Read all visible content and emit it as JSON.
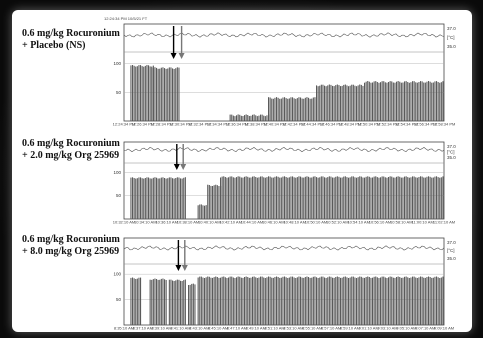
{
  "chart_data": [
    {
      "type": "bar",
      "series": [
        {
          "values": [],
          "name": ""
        }
      ],
      "label_line1": "0.6 mg/kg Rocuronium",
      "label_line2": "+ Placebo (NS)",
      "header": "12:24:34 PM 10/5/21 FT",
      "ylabels": [
        "100",
        "50",
        "0"
      ],
      "right_labels": [
        "37.0",
        "[°C]",
        "35.0"
      ],
      "xticks": [
        "12:24:34 PM",
        "12:26:34 PM",
        "12:28:34 PM",
        "12:30:34 PM",
        "12:32:34 PM",
        "12:34:34 PM",
        "12:36:34 PM",
        "12:38:34 PM",
        "12:40:34 PM",
        "12:42:34 PM",
        "12:44:34 PM",
        "12:46:34 PM",
        "12:48:34 PM",
        "12:50:34 PM",
        "12:52:34 PM",
        "12:54:34 PM",
        "12:56:34 PM",
        "12:58:34 PM"
      ],
      "bars": [
        {
          "start": 0.02,
          "end": 0.09,
          "value": 96
        },
        {
          "start": 0.09,
          "end": 0.17,
          "value": 92
        },
        {
          "start": 0.33,
          "end": 0.45,
          "value": 10
        },
        {
          "start": 0.45,
          "end": 0.6,
          "value": 40
        },
        {
          "start": 0.6,
          "end": 0.75,
          "value": 62
        },
        {
          "start": 0.75,
          "end": 1.0,
          "value": 68
        }
      ],
      "arrows": [
        0.155,
        0.18
      ],
      "ylim": [
        0,
        120
      ]
    },
    {
      "type": "bar",
      "series": [
        {
          "values": [],
          "name": ""
        }
      ],
      "label_line1": "0.6 mg/kg Rocuronium",
      "label_line2": "+ 2.0 mg/kg Org 25969",
      "header": "",
      "ylabels": [
        "100",
        "50",
        "0"
      ],
      "right_labels": [
        "37.0",
        "[°C]",
        "35.0"
      ],
      "xticks": [
        "10:32:10 AM",
        "10:34:10 AM",
        "10:36:10 AM",
        "10:38:10 AM",
        "10:40:10 AM",
        "10:42:10 AM",
        "10:44:10 AM",
        "10:46:10 AM",
        "10:48:10 AM",
        "10:50:10 AM",
        "10:52:10 AM",
        "10:54:10 AM",
        "10:56:10 AM",
        "10:58:10 AM",
        "11:00:10 AM",
        "11:02:10 AM"
      ],
      "bars": [
        {
          "start": 0.02,
          "end": 0.19,
          "value": 88
        },
        {
          "start": 0.23,
          "end": 0.26,
          "value": 30
        },
        {
          "start": 0.26,
          "end": 0.3,
          "value": 72
        },
        {
          "start": 0.3,
          "end": 1.0,
          "value": 90
        }
      ],
      "arrows": [
        0.165,
        0.185
      ],
      "ylim": [
        0,
        120
      ]
    },
    {
      "type": "bar",
      "series": [
        {
          "values": [],
          "name": ""
        }
      ],
      "label_line1": "0.6 mg/kg Rocuronium",
      "label_line2": "+ 8.0 mg/kg Org 25969",
      "header": "",
      "ylabels": [
        "100",
        "50",
        "0"
      ],
      "right_labels": [
        "37.0",
        "[°C]",
        "35.0"
      ],
      "xticks": [
        "8:35:10 AM",
        "8:37:10 AM",
        "8:39:10 AM",
        "8:41:10 AM",
        "8:43:10 AM",
        "8:45:10 AM",
        "8:47:10 AM",
        "8:49:10 AM",
        "8:51:10 AM",
        "8:53:10 AM",
        "8:55:10 AM",
        "8:57:10 AM",
        "8:59:10 AM",
        "9:01:10 AM",
        "9:03:10 AM",
        "9:05:10 AM",
        "9:07:10 AM",
        "9:09:10 AM"
      ],
      "bars": [
        {
          "start": 0.02,
          "end": 0.05,
          "value": 92
        },
        {
          "start": 0.08,
          "end": 0.13,
          "value": 90
        },
        {
          "start": 0.14,
          "end": 0.19,
          "value": 88
        },
        {
          "start": 0.2,
          "end": 0.22,
          "value": 80
        },
        {
          "start": 0.23,
          "end": 1.0,
          "value": 94
        }
      ],
      "arrows": [
        0.17,
        0.19
      ],
      "ylim": [
        0,
        120
      ]
    }
  ]
}
